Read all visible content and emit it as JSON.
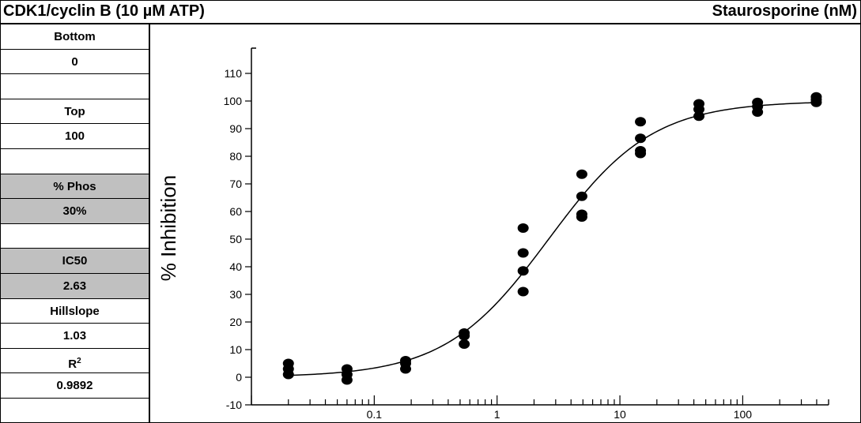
{
  "header": {
    "title_left": "CDK1/cyclin B  (10 µM ATP)",
    "title_right": "Staurosporine  (nM)"
  },
  "params": [
    {
      "text": "Bottom",
      "shaded": false
    },
    {
      "text": "0",
      "shaded": false
    },
    {
      "text": "",
      "shaded": false
    },
    {
      "text": "Top",
      "shaded": false
    },
    {
      "text": "100",
      "shaded": false
    },
    {
      "text": "",
      "shaded": false
    },
    {
      "text": "% Phos",
      "shaded": true
    },
    {
      "text": "30%",
      "shaded": true
    },
    {
      "text": "",
      "shaded": false
    },
    {
      "text": "IC50",
      "shaded": true
    },
    {
      "text": "2.63",
      "shaded": true
    },
    {
      "text": "Hillslope",
      "shaded": false
    },
    {
      "text": "1.03",
      "shaded": false
    },
    {
      "text": "R2",
      "shaded": false
    },
    {
      "text": "0.9892",
      "shaded": false
    }
  ],
  "chart_data": {
    "type": "scatter",
    "title": "",
    "xlabel": "",
    "ylabel": "% Inhibition",
    "x_scale": "log",
    "xlim": [
      0.01,
      500
    ],
    "ylim": [
      -10,
      118
    ],
    "y_ticks": [
      -10,
      0,
      10,
      20,
      30,
      40,
      50,
      60,
      70,
      80,
      90,
      100,
      110
    ],
    "x_tick_labels": [
      {
        "value": 0.1,
        "label": "0.1"
      },
      {
        "value": 1,
        "label": "1"
      },
      {
        "value": 10,
        "label": "10"
      },
      {
        "value": 100,
        "label": "100"
      }
    ],
    "points": [
      {
        "x": 0.02,
        "y": 5
      },
      {
        "x": 0.02,
        "y": 3
      },
      {
        "x": 0.02,
        "y": 1
      },
      {
        "x": 0.06,
        "y": 3
      },
      {
        "x": 0.06,
        "y": 1
      },
      {
        "x": 0.06,
        "y": -1
      },
      {
        "x": 0.18,
        "y": 6
      },
      {
        "x": 0.18,
        "y": 5
      },
      {
        "x": 0.18,
        "y": 3
      },
      {
        "x": 0.54,
        "y": 16
      },
      {
        "x": 0.54,
        "y": 15
      },
      {
        "x": 0.54,
        "y": 12
      },
      {
        "x": 1.63,
        "y": 54
      },
      {
        "x": 1.63,
        "y": 45
      },
      {
        "x": 1.63,
        "y": 38.5
      },
      {
        "x": 1.63,
        "y": 31
      },
      {
        "x": 4.9,
        "y": 73.5
      },
      {
        "x": 4.9,
        "y": 65.5
      },
      {
        "x": 4.9,
        "y": 59
      },
      {
        "x": 4.9,
        "y": 58
      },
      {
        "x": 14.7,
        "y": 92.5
      },
      {
        "x": 14.7,
        "y": 86.5
      },
      {
        "x": 14.7,
        "y": 82
      },
      {
        "x": 14.7,
        "y": 81
      },
      {
        "x": 44,
        "y": 99
      },
      {
        "x": 44,
        "y": 97
      },
      {
        "x": 44,
        "y": 94.5
      },
      {
        "x": 132,
        "y": 99.5
      },
      {
        "x": 132,
        "y": 98
      },
      {
        "x": 132,
        "y": 96
      },
      {
        "x": 397,
        "y": 101.5
      },
      {
        "x": 397,
        "y": 100.5
      },
      {
        "x": 397,
        "y": 99.5
      }
    ],
    "fit": {
      "model": "4-parameter logistic",
      "bottom": 0,
      "top": 100,
      "ic50": 2.63,
      "hillslope": 1.03
    }
  }
}
